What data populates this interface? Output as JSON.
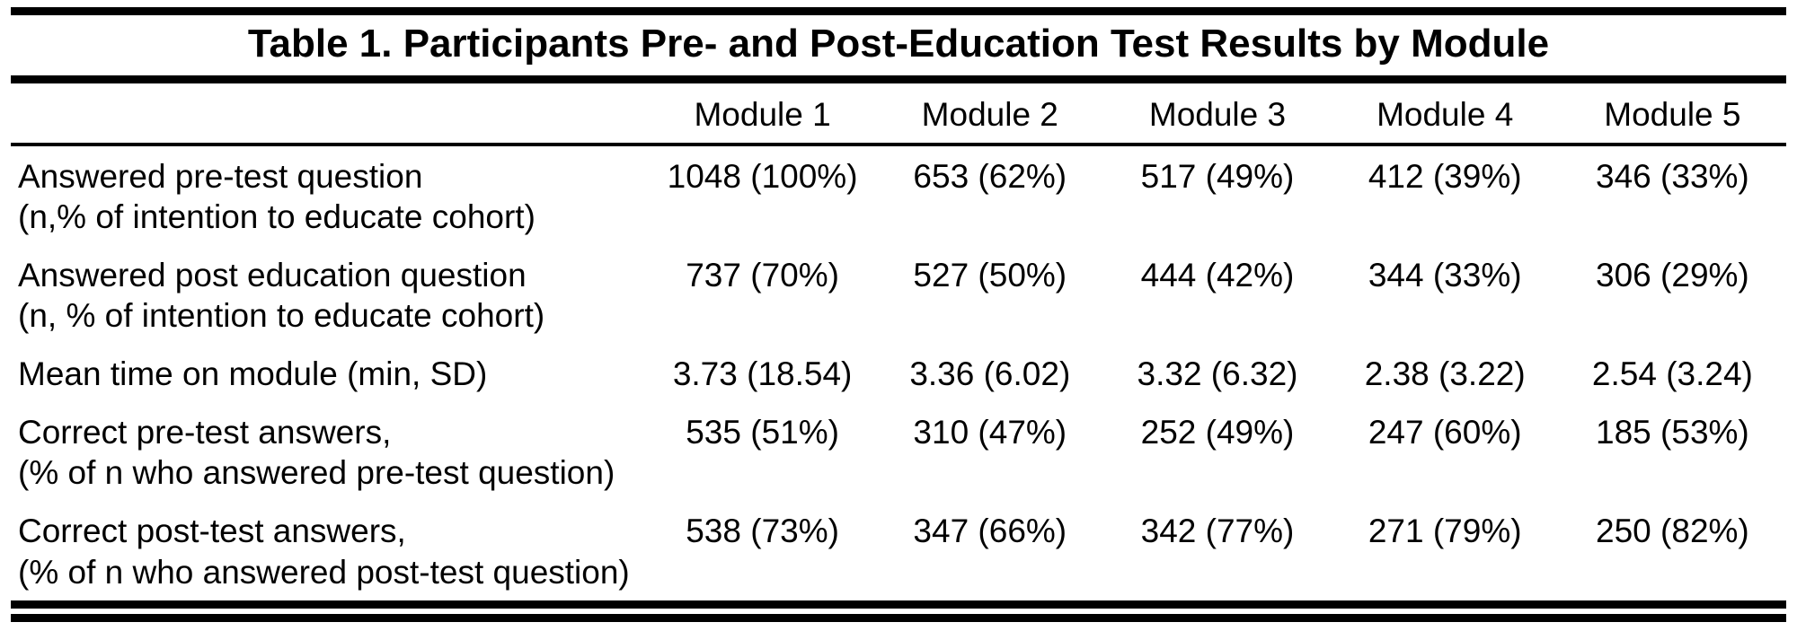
{
  "title": "Table 1. Participants Pre- and Post-Education Test Results by Module",
  "table": {
    "column_headers": [
      "Module 1",
      "Module 2",
      "Module 3",
      "Module 4",
      "Module 5"
    ],
    "rows": [
      {
        "label": "Answered pre-test question",
        "sublabel": "(n,% of intention to educate cohort)",
        "values": [
          "1048 (100%)",
          "653 (62%)",
          "517 (49%)",
          "412 (39%)",
          "346 (33%)"
        ]
      },
      {
        "label": "Answered post education question",
        "sublabel": "(n, % of intention to educate cohort)",
        "values": [
          "737 (70%)",
          "527 (50%)",
          "444 (42%)",
          "344 (33%)",
          "306 (29%)"
        ]
      },
      {
        "label": "Mean time on module (min, SD)",
        "sublabel": "",
        "values": [
          "3.73 (18.54)",
          "3.36 (6.02)",
          "3.32 (6.32)",
          "2.38 (3.22)",
          "2.54 (3.24)"
        ]
      },
      {
        "label": "Correct pre-test answers,",
        "sublabel": "(% of n who answered pre-test question)",
        "values": [
          "535 (51%)",
          "310 (47%)",
          "252 (49%)",
          "247 (60%)",
          "185 (53%)"
        ]
      },
      {
        "label": "Correct post-test answers,",
        "sublabel": "(% of n who answered post-test question)",
        "values": [
          "538 (73%)",
          "347 (66%)",
          "342 (77%)",
          "271 (79%)",
          "250 (82%)"
        ]
      }
    ]
  }
}
